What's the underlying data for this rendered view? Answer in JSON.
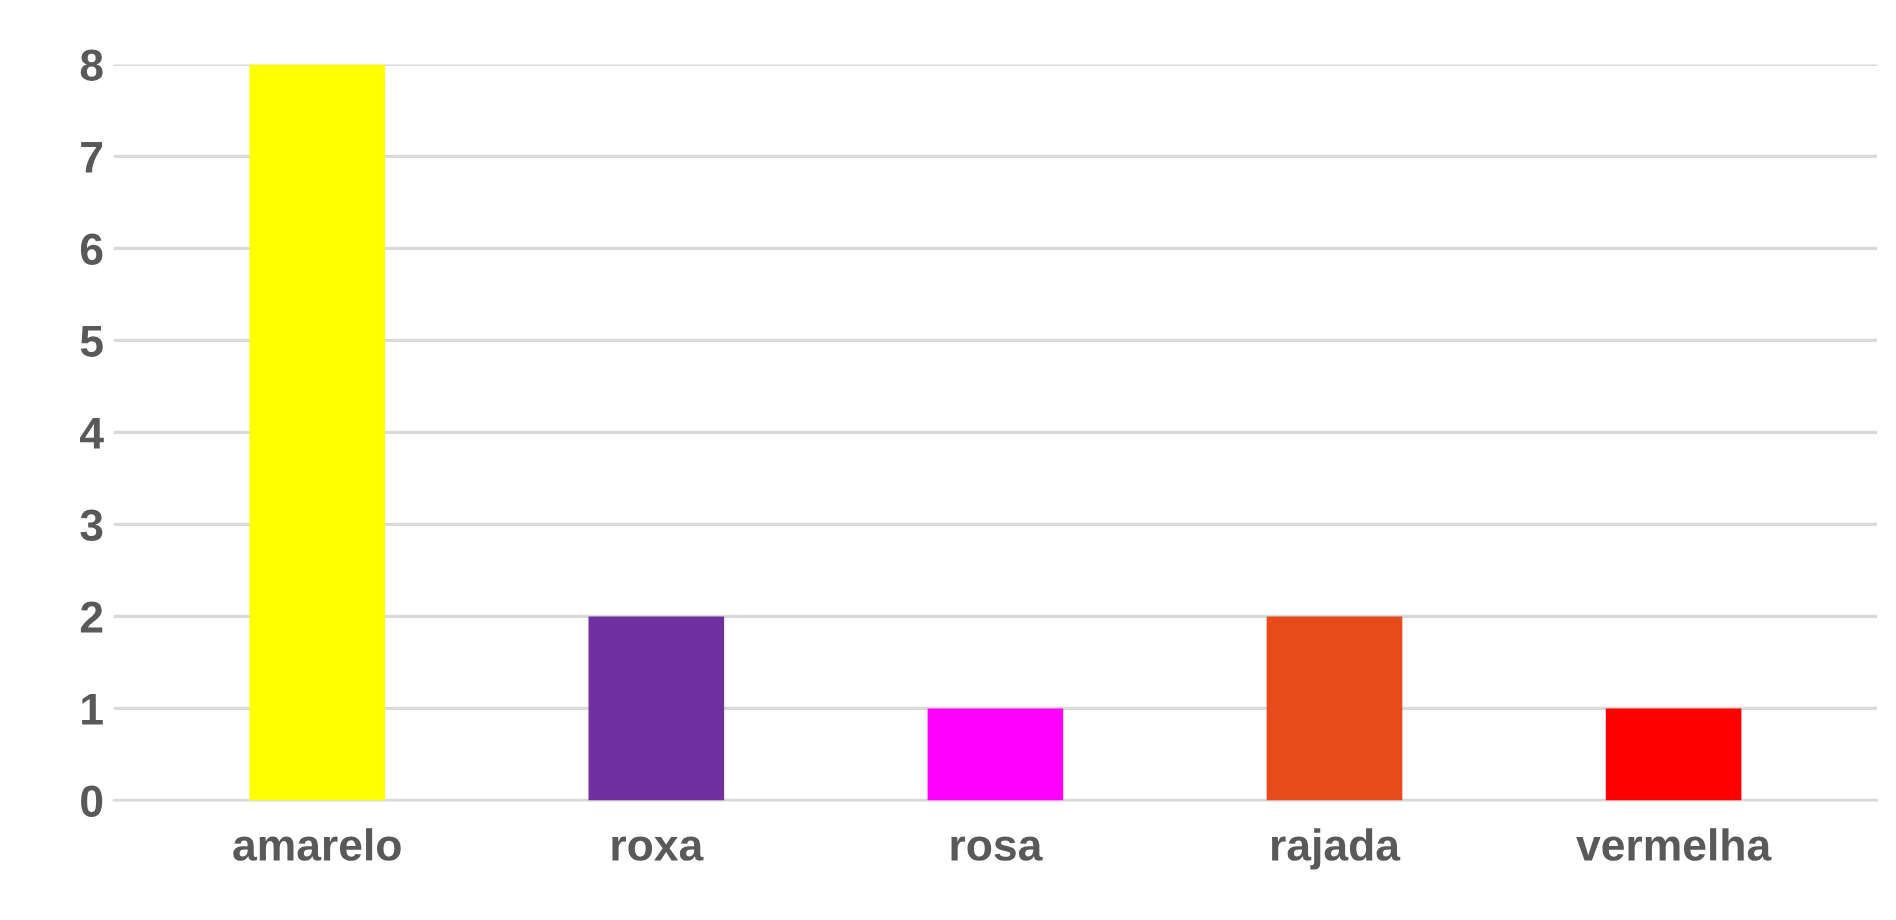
{
  "chart_data": {
    "type": "bar",
    "categories": [
      "amarelo",
      "roxa",
      "rosa",
      "rajada",
      "vermelha"
    ],
    "values": [
      8,
      2,
      1,
      2,
      1
    ],
    "colors": [
      "#ffff00",
      "#7030a0",
      "#ff00ff",
      "#e84a1a",
      "#ff0000"
    ],
    "ylim": [
      0,
      8
    ],
    "yticks": [
      0,
      1,
      2,
      3,
      4,
      5,
      6,
      7,
      8
    ],
    "grid": "y"
  }
}
